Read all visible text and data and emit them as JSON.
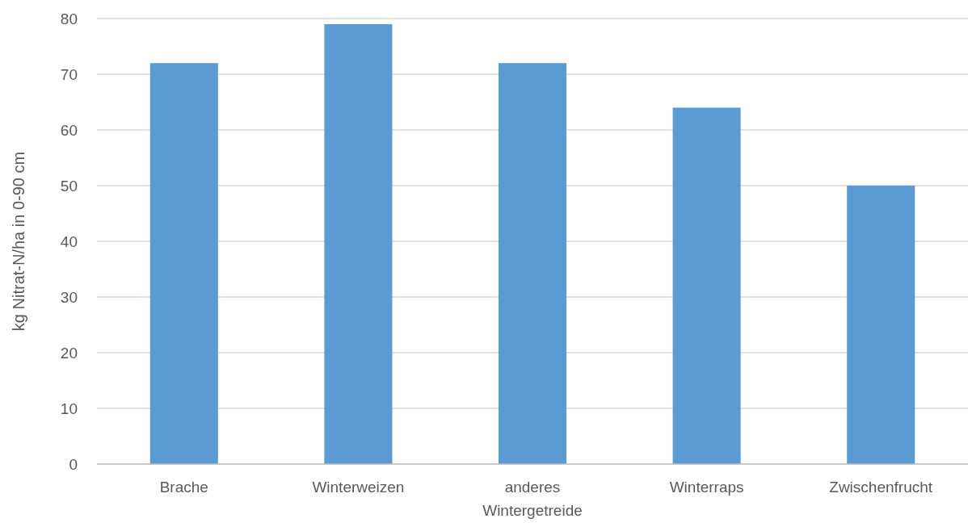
{
  "chart_data": {
    "type": "bar",
    "ylabel": "kg Nitrat-N/ha in 0-90 cm",
    "categories": [
      "Brache",
      "Winterweizen",
      "anderes Wintergetreide",
      "Winterraps",
      "Zwischenfrucht"
    ],
    "values": [
      72,
      79,
      72,
      64,
      50
    ],
    "color": "#5b9bd5",
    "ylim": [
      0,
      80
    ],
    "yticks": [
      0,
      10,
      20,
      30,
      40,
      50,
      60,
      70,
      80
    ],
    "grid": "y"
  }
}
